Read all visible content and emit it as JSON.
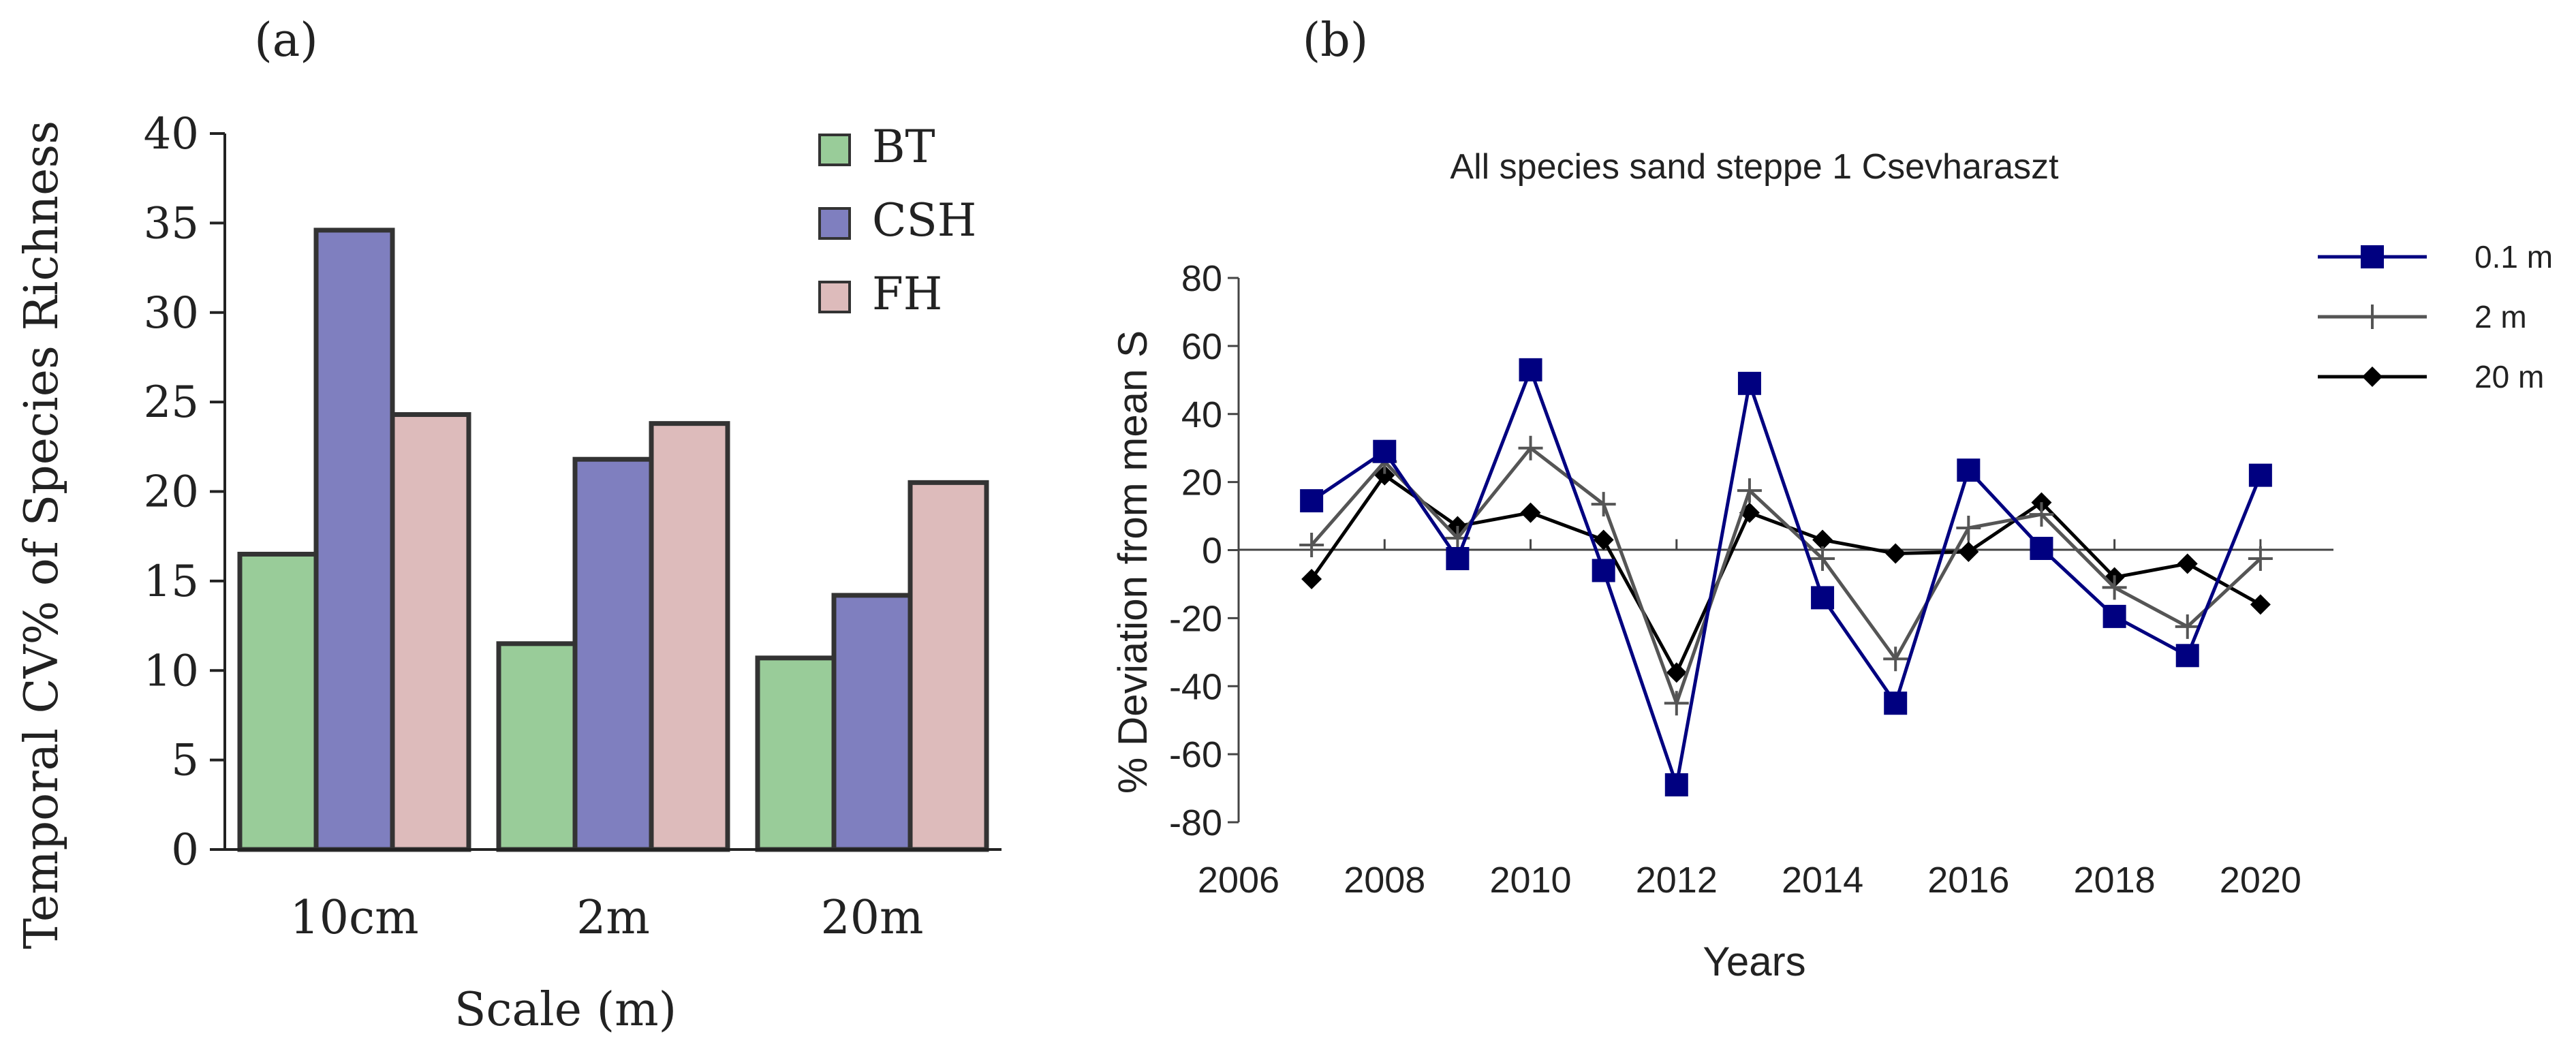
{
  "chart_data": [
    {
      "type": "bar",
      "panel_label": "(a)",
      "title": "",
      "xlabel": "Scale (m)",
      "ylabel": "Temporal CV% of Species Richness",
      "categories": [
        "10cm",
        "2m",
        "20m"
      ],
      "ylim": [
        0,
        40
      ],
      "yticks": [
        "0",
        "5",
        "10",
        "15",
        "20",
        "25",
        "30",
        "35",
        "40"
      ],
      "grid": false,
      "legend_position": "top-right",
      "series": [
        {
          "name": "BT",
          "color": "#99cc99",
          "values": [
            16.5,
            11.5,
            10.7
          ]
        },
        {
          "name": "CSH",
          "color": "#7f7fbf",
          "values": [
            34.6,
            21.8,
            14.2
          ]
        },
        {
          "name": "FH",
          "color": "#ddbbbb",
          "values": [
            24.3,
            23.8,
            20.5
          ]
        }
      ]
    },
    {
      "type": "line",
      "panel_label": "(b)",
      "title": "All species sand steppe 1 Csevharaszt",
      "xlabel": "Years",
      "ylabel": "% Deviation from mean S",
      "xlim": [
        2006,
        2021
      ],
      "ylim": [
        -80,
        80
      ],
      "xticks": [
        "2006",
        "2008",
        "2010",
        "2012",
        "2014",
        "2016",
        "2018",
        "2020"
      ],
      "yticks": [
        "-80",
        "-60",
        "-40",
        "-20",
        "0",
        "20",
        "40",
        "60",
        "80"
      ],
      "grid": false,
      "legend_position": "top-right",
      "x": [
        2007,
        2008,
        2009,
        2010,
        2011,
        2012,
        2013,
        2014,
        2015,
        2016,
        2017,
        2018,
        2019,
        2020
      ],
      "series": [
        {
          "name": "0.1 m",
          "color": "#000080",
          "marker": "square",
          "values": [
            14.5,
            29,
            -2.5,
            53,
            -6,
            -69,
            49,
            -14,
            -45,
            23.5,
            0.5,
            -19.5,
            -31,
            22
          ]
        },
        {
          "name": "2 m",
          "color": "#555555",
          "marker": "plus",
          "values": [
            1.5,
            26,
            3.5,
            30,
            13.5,
            -45,
            17.5,
            -2.5,
            -32,
            6.5,
            10.5,
            -11,
            -22.5,
            -2.5
          ]
        },
        {
          "name": "20 m",
          "color": "#000000",
          "marker": "diamond",
          "values": [
            -8.5,
            22,
            7,
            11,
            3,
            -36,
            11,
            3,
            -1,
            -0.5,
            14,
            -8,
            -4,
            -16
          ]
        }
      ]
    }
  ]
}
